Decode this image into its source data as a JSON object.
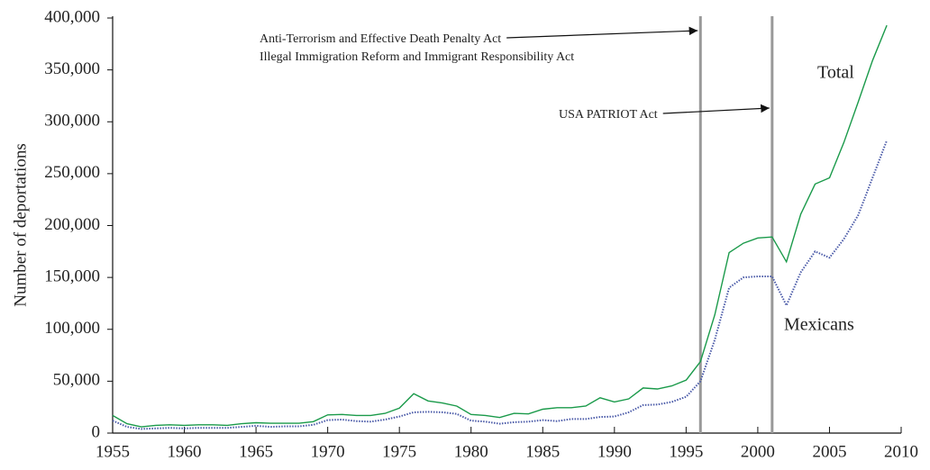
{
  "chart_data": {
    "type": "line",
    "y_label": "Number of deportations",
    "x": [
      1955,
      1956,
      1957,
      1958,
      1959,
      1960,
      1961,
      1962,
      1963,
      1964,
      1965,
      1966,
      1967,
      1968,
      1969,
      1970,
      1971,
      1972,
      1973,
      1974,
      1975,
      1976,
      1977,
      1978,
      1979,
      1980,
      1981,
      1982,
      1983,
      1984,
      1985,
      1986,
      1987,
      1988,
      1989,
      1990,
      1991,
      1992,
      1993,
      1994,
      1995,
      1996,
      1997,
      1998,
      1999,
      2000,
      2001,
      2002,
      2003,
      2004,
      2005,
      2006,
      2007,
      2008,
      2009
    ],
    "series": [
      {
        "name": "Total",
        "color": "#1a9a4a",
        "dash": "solid",
        "values": [
          17000,
          9000,
          6000,
          7500,
          8000,
          7500,
          8000,
          8000,
          7500,
          9000,
          10000,
          9500,
          9500,
          9500,
          11000,
          17500,
          18000,
          17000,
          17000,
          19000,
          24000,
          38000,
          31000,
          29000,
          26000,
          18000,
          17000,
          15000,
          19000,
          18500,
          23000,
          24500,
          24500,
          26000,
          34000,
          30000,
          33000,
          43500,
          42500,
          45500,
          51000,
          69000,
          114000,
          174000,
          183000,
          188000,
          189000,
          165000,
          211000,
          240000,
          246000,
          280000,
          319000,
          359000,
          393000
        ]
      },
      {
        "name": "Mexicans",
        "color": "#4a5aa8",
        "dash": "dotted",
        "values": [
          12000,
          6000,
          4000,
          4500,
          5000,
          4500,
          5000,
          5000,
          5000,
          6000,
          7000,
          6000,
          6500,
          6500,
          8000,
          12500,
          13000,
          11500,
          11000,
          13000,
          16000,
          20000,
          20500,
          20000,
          18500,
          12000,
          11000,
          9000,
          10500,
          11000,
          12500,
          11500,
          13500,
          13500,
          15500,
          16000,
          20000,
          27000,
          27500,
          30000,
          35000,
          50000,
          90000,
          140000,
          150000,
          151000,
          151000,
          123000,
          155000,
          175000,
          169000,
          187000,
          210000,
          246000,
          282000
        ]
      }
    ],
    "xlim": [
      1955,
      2010
    ],
    "xticks": [
      1955,
      1960,
      1965,
      1970,
      1975,
      1980,
      1985,
      1990,
      1995,
      2000,
      2005,
      2010
    ],
    "ylim": [
      0,
      400000
    ],
    "yticks": [
      0,
      {
        "value": 50000,
        "label": "50,000"
      },
      {
        "value": 100000,
        "label": "100,000"
      },
      {
        "value": 150000,
        "label": "150,000"
      },
      {
        "value": 200000,
        "label": "200,000"
      },
      {
        "value": 250000,
        "label": "250,000"
      },
      {
        "value": 300000,
        "label": "300,000"
      },
      {
        "value": 350000,
        "label": "350,000"
      },
      {
        "value": 400000,
        "label": "400,000"
      }
    ],
    "grid": false,
    "annotations": [
      {
        "x": 1996,
        "lines": [
          "Anti-Terrorism and Effective Death Penalty Act",
          "Illegal Immigration Reform and Immigrant Responsibility Act"
        ]
      },
      {
        "x": 2001,
        "lines": [
          "USA PATRIOT Act"
        ]
      }
    ]
  }
}
